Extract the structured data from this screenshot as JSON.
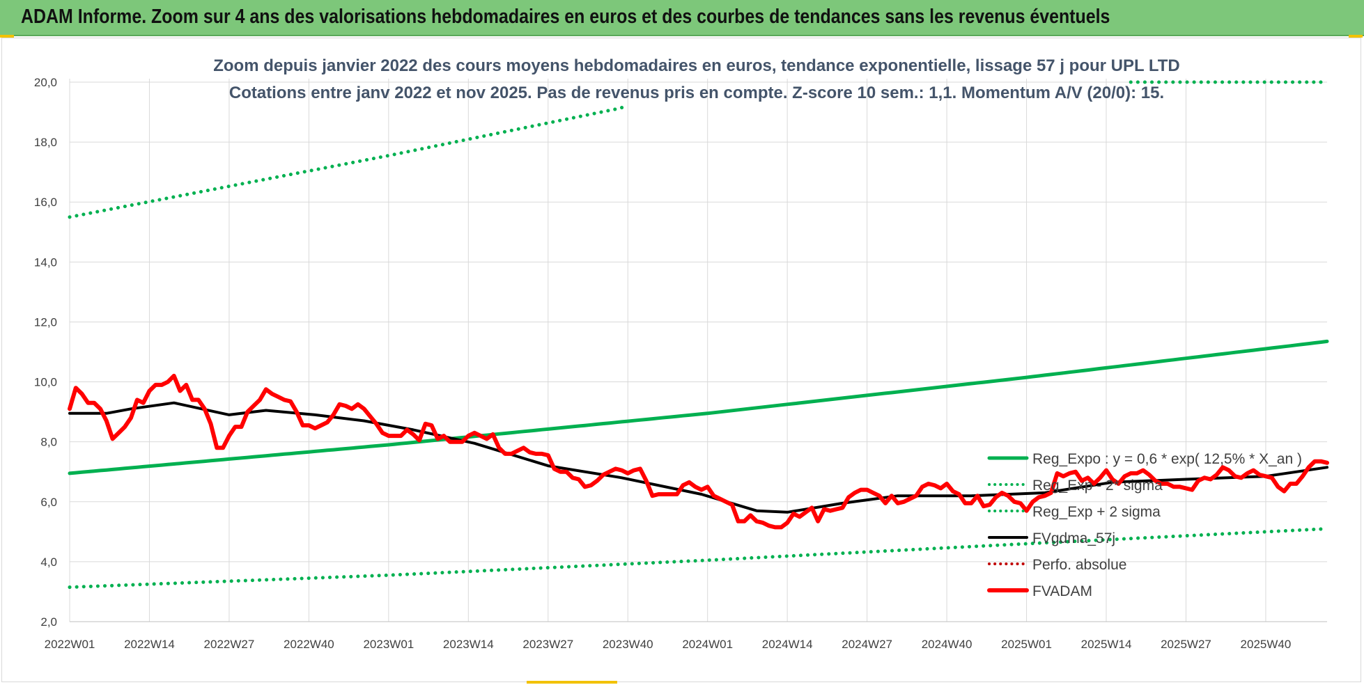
{
  "header": {
    "title": "ADAM Informe. Zoom sur 4 ans des valorisations hebdomadaires en euros et des courbes de tendances sans les revenus éventuels"
  },
  "colors": {
    "header_bg": "#7dc77a",
    "reg_expo": "#00b050",
    "fvgdma": "#000000",
    "fvadam": "#ff0000",
    "perfo_absolue": "#c00000",
    "title_text": "#44546a"
  },
  "chart_data": {
    "type": "line",
    "title": "Zoom depuis janvier 2022 des cours moyens hebdomadaires en euros, tendance exponentielle, lissage 57 j pour UPL LTD",
    "subtitle": "Cotations entre janv 2022 et nov 2025. Pas de revenus pris en compte. Z-score 10 sem.: 1,1. Momentum A/V (20/0): 15.",
    "xlabel": "",
    "ylabel": "",
    "ylim": [
      2.0,
      20.0
    ],
    "y_ticks": [
      "2,0",
      "4,0",
      "6,0",
      "8,0",
      "10,0",
      "12,0",
      "14,0",
      "16,0",
      "18,0",
      "20,0"
    ],
    "x_tick_labels": [
      "2022W01",
      "2022W14",
      "2022W27",
      "2022W40",
      "2023W01",
      "2023W14",
      "2023W27",
      "2023W40",
      "2024W01",
      "2024W14",
      "2024W27",
      "2024W40",
      "2025W01",
      "2025W14",
      "2025W27",
      "2025W40"
    ],
    "x_ticks_week_index": [
      0,
      13,
      26,
      39,
      52,
      65,
      78,
      91,
      104,
      117,
      130,
      143,
      156,
      169,
      182,
      195
    ],
    "week_count": 206,
    "grid": true,
    "legend_position": "right",
    "series": [
      {
        "name": "Reg_Expo : y = 0,6 * exp( 12,5% *  X_an )",
        "style": "solid",
        "key": [
          [
            0,
            6.95
          ],
          [
            52,
            7.9
          ],
          [
            104,
            8.95
          ],
          [
            156,
            10.15
          ],
          [
            205,
            11.35
          ]
        ]
      },
      {
        "name": "Reg_Exp - 2* sigma",
        "style": "dotted",
        "key": [
          [
            0,
            3.15
          ],
          [
            52,
            3.55
          ],
          [
            104,
            4.05
          ],
          [
            156,
            4.6
          ],
          [
            205,
            5.1
          ]
        ]
      },
      {
        "name": "Reg_Exp + 2 sigma",
        "style": "dotted",
        "key": [
          [
            0,
            15.5
          ],
          [
            52,
            17.55
          ],
          [
            89,
            19.1
          ],
          [
            91,
            19.2
          ]
        ]
      },
      {
        "name": "Reg_Exp + 2 sigma",
        "style": "dotted",
        "key": [
          [
            173,
            20.0
          ],
          [
            205,
            20.0
          ]
        ]
      },
      {
        "name": "FVgdma_57j",
        "style": "solid",
        "key": [
          [
            0,
            8.95
          ],
          [
            6,
            8.95
          ],
          [
            10,
            9.1
          ],
          [
            17,
            9.3
          ],
          [
            26,
            8.9
          ],
          [
            32,
            9.05
          ],
          [
            40,
            8.9
          ],
          [
            48,
            8.7
          ],
          [
            56,
            8.4
          ],
          [
            66,
            7.95
          ],
          [
            78,
            7.2
          ],
          [
            90,
            6.8
          ],
          [
            103,
            6.25
          ],
          [
            112,
            5.7
          ],
          [
            117,
            5.65
          ],
          [
            126,
            5.95
          ],
          [
            135,
            6.2
          ],
          [
            147,
            6.2
          ],
          [
            159,
            6.3
          ],
          [
            170,
            6.65
          ],
          [
            182,
            6.75
          ],
          [
            195,
            6.85
          ],
          [
            205,
            7.15
          ]
        ]
      },
      {
        "name": "Perfo. absolue",
        "style": "dotted",
        "key": []
      },
      {
        "name": "FVADAM",
        "style": "solid",
        "key": [
          [
            0,
            9.1
          ],
          [
            1,
            9.8
          ],
          [
            2,
            9.6
          ],
          [
            3,
            9.3
          ],
          [
            4,
            9.3
          ],
          [
            5,
            9.1
          ],
          [
            6,
            8.7
          ],
          [
            7,
            8.1
          ],
          [
            8,
            8.3
          ],
          [
            9,
            8.5
          ],
          [
            10,
            8.8
          ],
          [
            11,
            9.4
          ],
          [
            12,
            9.3
          ],
          [
            13,
            9.7
          ],
          [
            14,
            9.9
          ],
          [
            15,
            9.9
          ],
          [
            16,
            10.0
          ],
          [
            17,
            10.2
          ],
          [
            18,
            9.7
          ],
          [
            19,
            9.9
          ],
          [
            20,
            9.4
          ],
          [
            21,
            9.4
          ],
          [
            22,
            9.1
          ],
          [
            23,
            8.6
          ],
          [
            24,
            7.8
          ],
          [
            25,
            7.8
          ],
          [
            26,
            8.2
          ],
          [
            27,
            8.5
          ],
          [
            28,
            8.5
          ],
          [
            29,
            9.0
          ],
          [
            30,
            9.2
          ],
          [
            31,
            9.4
          ],
          [
            32,
            9.75
          ],
          [
            33,
            9.6
          ],
          [
            34,
            9.5
          ],
          [
            35,
            9.4
          ],
          [
            36,
            9.35
          ],
          [
            37,
            9.0
          ],
          [
            38,
            8.55
          ],
          [
            39,
            8.55
          ],
          [
            40,
            8.45
          ],
          [
            41,
            8.55
          ],
          [
            42,
            8.65
          ],
          [
            43,
            8.9
          ],
          [
            44,
            9.25
          ],
          [
            45,
            9.2
          ],
          [
            46,
            9.1
          ],
          [
            47,
            9.25
          ],
          [
            48,
            9.1
          ],
          [
            49,
            8.85
          ],
          [
            50,
            8.6
          ],
          [
            51,
            8.3
          ],
          [
            52,
            8.2
          ],
          [
            53,
            8.2
          ],
          [
            54,
            8.2
          ],
          [
            55,
            8.4
          ],
          [
            56,
            8.25
          ],
          [
            57,
            8.05
          ],
          [
            58,
            8.6
          ],
          [
            59,
            8.55
          ],
          [
            60,
            8.1
          ],
          [
            61,
            8.2
          ],
          [
            62,
            8.0
          ],
          [
            63,
            8.0
          ],
          [
            64,
            8.0
          ],
          [
            65,
            8.2
          ],
          [
            66,
            8.3
          ],
          [
            67,
            8.2
          ],
          [
            68,
            8.1
          ],
          [
            69,
            8.25
          ],
          [
            70,
            7.8
          ],
          [
            71,
            7.6
          ],
          [
            72,
            7.6
          ],
          [
            73,
            7.7
          ],
          [
            74,
            7.8
          ],
          [
            75,
            7.65
          ],
          [
            76,
            7.6
          ],
          [
            77,
            7.6
          ],
          [
            78,
            7.55
          ],
          [
            79,
            7.1
          ],
          [
            80,
            7.0
          ],
          [
            81,
            7.0
          ],
          [
            82,
            6.8
          ],
          [
            83,
            6.75
          ],
          [
            84,
            6.5
          ],
          [
            85,
            6.55
          ],
          [
            86,
            6.7
          ],
          [
            87,
            6.9
          ],
          [
            88,
            7.0
          ],
          [
            89,
            7.1
          ],
          [
            90,
            7.05
          ],
          [
            91,
            6.95
          ],
          [
            92,
            7.05
          ],
          [
            93,
            7.1
          ],
          [
            94,
            6.7
          ],
          [
            95,
            6.2
          ],
          [
            96,
            6.25
          ],
          [
            97,
            6.25
          ],
          [
            98,
            6.25
          ],
          [
            99,
            6.25
          ],
          [
            100,
            6.55
          ],
          [
            101,
            6.65
          ],
          [
            102,
            6.5
          ],
          [
            103,
            6.4
          ],
          [
            104,
            6.5
          ],
          [
            105,
            6.2
          ],
          [
            106,
            6.1
          ],
          [
            107,
            6.0
          ],
          [
            108,
            5.9
          ],
          [
            109,
            5.35
          ],
          [
            110,
            5.35
          ],
          [
            111,
            5.55
          ],
          [
            112,
            5.35
          ],
          [
            113,
            5.3
          ],
          [
            114,
            5.2
          ],
          [
            115,
            5.15
          ],
          [
            116,
            5.15
          ],
          [
            117,
            5.3
          ],
          [
            118,
            5.6
          ],
          [
            119,
            5.5
          ],
          [
            120,
            5.65
          ],
          [
            121,
            5.8
          ],
          [
            122,
            5.35
          ],
          [
            123,
            5.75
          ],
          [
            124,
            5.7
          ],
          [
            125,
            5.75
          ],
          [
            126,
            5.8
          ],
          [
            127,
            6.15
          ],
          [
            128,
            6.3
          ],
          [
            129,
            6.4
          ],
          [
            130,
            6.4
          ],
          [
            131,
            6.3
          ],
          [
            132,
            6.2
          ],
          [
            133,
            5.95
          ],
          [
            134,
            6.2
          ],
          [
            135,
            5.95
          ],
          [
            136,
            6.0
          ],
          [
            137,
            6.1
          ],
          [
            138,
            6.2
          ],
          [
            139,
            6.5
          ],
          [
            140,
            6.6
          ],
          [
            141,
            6.55
          ],
          [
            142,
            6.45
          ],
          [
            143,
            6.6
          ],
          [
            144,
            6.35
          ],
          [
            145,
            6.25
          ],
          [
            146,
            5.95
          ],
          [
            147,
            5.95
          ],
          [
            148,
            6.2
          ],
          [
            149,
            5.85
          ],
          [
            150,
            5.9
          ],
          [
            151,
            6.15
          ],
          [
            152,
            6.3
          ],
          [
            153,
            6.2
          ],
          [
            154,
            6.0
          ],
          [
            155,
            5.95
          ],
          [
            156,
            5.7
          ],
          [
            157,
            6.0
          ],
          [
            158,
            6.15
          ],
          [
            159,
            6.2
          ],
          [
            160,
            6.3
          ],
          [
            161,
            6.95
          ],
          [
            162,
            6.85
          ],
          [
            163,
            6.95
          ],
          [
            164,
            7.0
          ],
          [
            165,
            6.7
          ],
          [
            166,
            6.8
          ],
          [
            167,
            6.6
          ],
          [
            168,
            6.8
          ],
          [
            169,
            7.05
          ],
          [
            170,
            6.75
          ],
          [
            171,
            6.6
          ],
          [
            172,
            6.85
          ],
          [
            173,
            6.95
          ],
          [
            174,
            6.95
          ],
          [
            175,
            7.05
          ],
          [
            176,
            6.9
          ],
          [
            177,
            6.7
          ],
          [
            178,
            6.6
          ],
          [
            179,
            6.6
          ],
          [
            180,
            6.5
          ],
          [
            181,
            6.5
          ],
          [
            182,
            6.45
          ],
          [
            183,
            6.4
          ],
          [
            184,
            6.7
          ],
          [
            185,
            6.8
          ],
          [
            186,
            6.75
          ],
          [
            187,
            6.9
          ],
          [
            188,
            7.15
          ],
          [
            189,
            7.05
          ],
          [
            190,
            6.85
          ],
          [
            191,
            6.8
          ],
          [
            192,
            6.95
          ],
          [
            193,
            7.05
          ],
          [
            194,
            6.9
          ],
          [
            195,
            6.85
          ],
          [
            196,
            6.8
          ],
          [
            197,
            6.5
          ],
          [
            198,
            6.35
          ],
          [
            199,
            6.6
          ],
          [
            200,
            6.6
          ],
          [
            201,
            6.85
          ],
          [
            202,
            7.15
          ],
          [
            203,
            7.35
          ],
          [
            204,
            7.35
          ],
          [
            205,
            7.3
          ]
        ]
      }
    ]
  }
}
